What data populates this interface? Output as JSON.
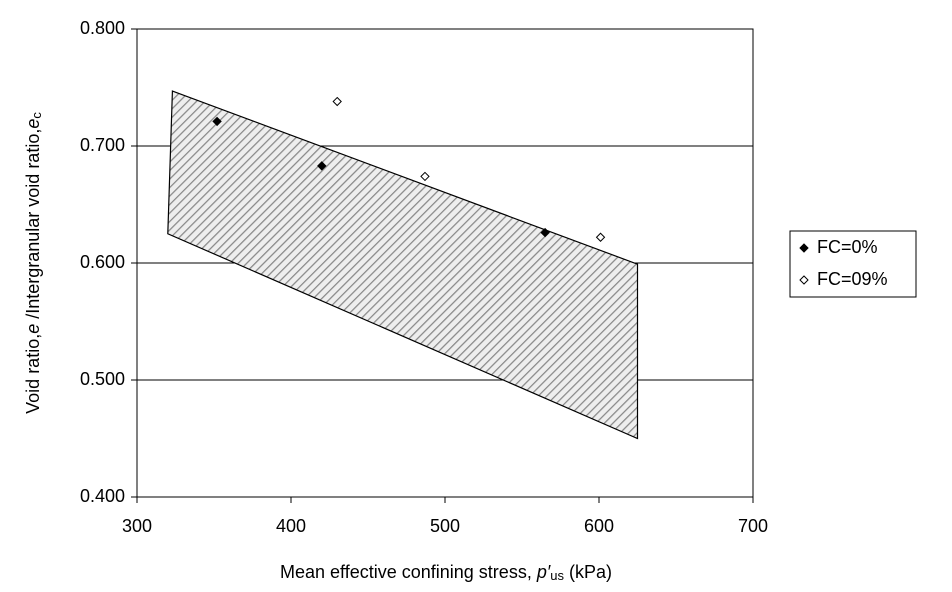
{
  "chart_data": {
    "type": "scatter",
    "xlabel": [
      "Mean effective confining stress, ",
      "p′",
      "us",
      " (kPa)"
    ],
    "ylabel": [
      "Void ratio,",
      "e",
      " /Intergranular void ratio,",
      "e",
      "c"
    ],
    "xlim": [
      300,
      700
    ],
    "xticks": [
      300,
      400,
      500,
      600,
      700
    ],
    "ylim": [
      0.4,
      0.8
    ],
    "yticks": [
      {
        "value": 0.4,
        "label": "0.400"
      },
      {
        "value": 0.5,
        "label": "0.500"
      },
      {
        "value": 0.6,
        "label": "0.600"
      },
      {
        "value": 0.7,
        "label": "0.700"
      },
      {
        "value": 0.8,
        "label": "0.800"
      }
    ],
    "grid": true,
    "legend": "right",
    "region": {
      "x": [
        323,
        625,
        625,
        320
      ],
      "y": [
        0.747,
        0.599,
        0.45,
        0.625
      ]
    },
    "series": [
      {
        "name": "FC=0%",
        "color": "#000000",
        "marker": "filled-diamond",
        "x": [
          352,
          420,
          565
        ],
        "values": [
          0.721,
          0.683,
          0.626
        ]
      },
      {
        "name": "FC=09%",
        "color": "#000000",
        "marker": "open-diamond",
        "x": [
          430,
          487,
          601
        ],
        "values": [
          0.738,
          0.674,
          0.622
        ]
      }
    ]
  }
}
